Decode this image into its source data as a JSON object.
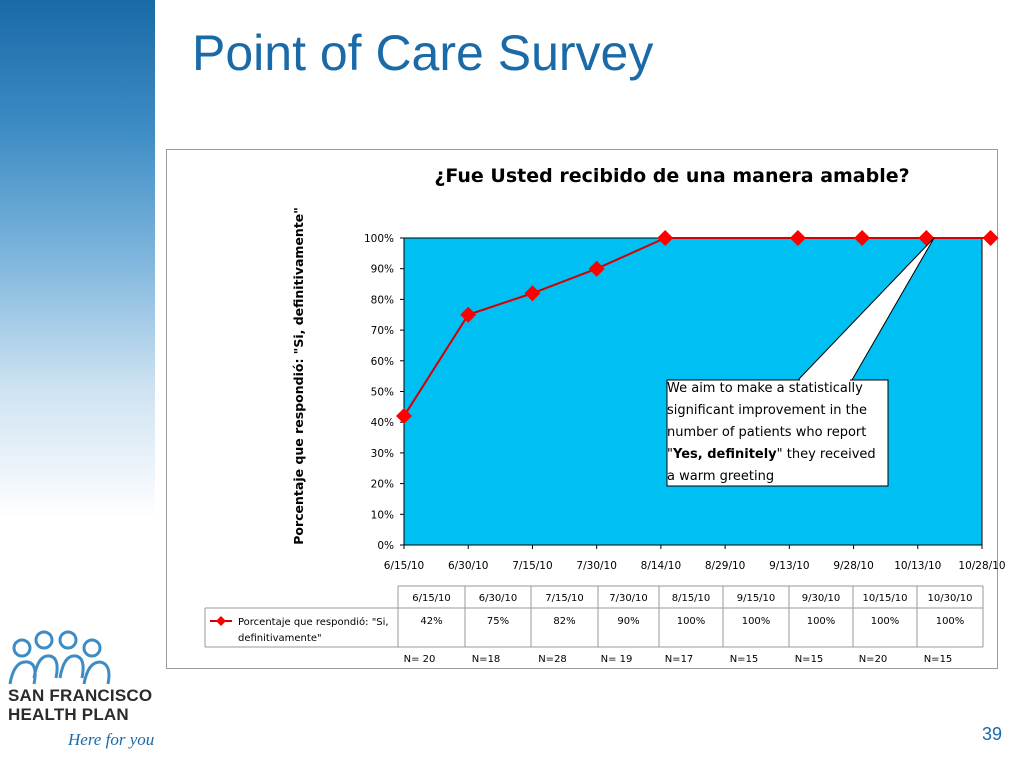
{
  "slide": {
    "title": "Point of Care Survey",
    "page_number": "39",
    "logo_name_line1": "SAN FRANCISCO",
    "logo_name_line2": "HEALTH PLAN",
    "logo_tagline": "Here for you"
  },
  "callout": {
    "text_before": "We aim to make a statistically significant improvement in the number of patients who report \"",
    "text_bold": "Yes, definitely",
    "text_after": "\"  they received a warm greeting"
  },
  "colors": {
    "plot_bg": "#00bff3",
    "line": "#d40000",
    "marker": "#ff0000",
    "title_blue": "#1a6aa8"
  },
  "chart_data": {
    "type": "line",
    "title": "¿Fue Usted recibido de una manera amable?",
    "ylabel": "Porcentaje que respondió: \"Si, definitivamente\"",
    "ylim": [
      0,
      100
    ],
    "y_ticks": [
      "0%",
      "10%",
      "20%",
      "30%",
      "40%",
      "50%",
      "60%",
      "70%",
      "80%",
      "90%",
      "100%"
    ],
    "x_ticks": [
      "6/15/10",
      "6/30/10",
      "7/15/10",
      "7/30/10",
      "8/14/10",
      "8/29/10",
      "9/13/10",
      "9/28/10",
      "10/13/10",
      "10/28/10"
    ],
    "x_range": [
      "2010-06-15",
      "2010-10-28"
    ],
    "grid": false,
    "series": [
      {
        "name": "Porcentaje que respondió: \"Si, definitivamente\"",
        "x": [
          "2010-06-15",
          "2010-06-30",
          "2010-07-15",
          "2010-07-30",
          "2010-08-15",
          "2010-09-15",
          "2010-09-30",
          "2010-10-15",
          "2010-10-30"
        ],
        "values": [
          42,
          75,
          82,
          90,
          100,
          100,
          100,
          100,
          100
        ]
      }
    ],
    "table": {
      "dates": [
        "6/15/10",
        "6/30/10",
        "7/15/10",
        "7/30/10",
        "8/15/10",
        "9/15/10",
        "9/30/10",
        "10/15/10",
        "10/30/10"
      ],
      "values": [
        "42%",
        "75%",
        "82%",
        "90%",
        "100%",
        "100%",
        "100%",
        "100%",
        "100%"
      ],
      "legend_line1": "Porcentaje que respondió: \"Si,",
      "legend_line2": "definitivamente\""
    },
    "sample_sizes": [
      "N= 20",
      "N=18",
      "N=28",
      "N= 19",
      "N=17",
      "N=15",
      "N=15",
      "N=20",
      "N=15"
    ]
  }
}
